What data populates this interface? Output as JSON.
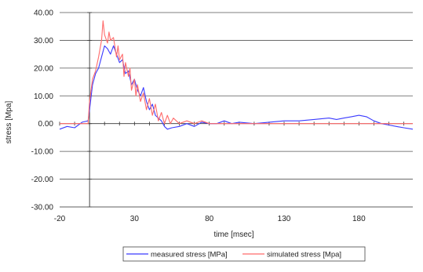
{
  "chart_data": {
    "type": "line",
    "xlabel": "time [msec]",
    "ylabel": "stress [Mpa]",
    "xlim": [
      -20,
      216
    ],
    "ylim": [
      -30,
      40
    ],
    "x_ticks": [
      -20,
      30,
      80,
      130,
      180
    ],
    "x_tick_labels": [
      "-20",
      "30",
      "80",
      "130",
      "180"
    ],
    "y_ticks": [
      -30,
      -20,
      -10,
      0,
      10,
      20,
      30,
      40
    ],
    "y_tick_labels": [
      "-30.00",
      "-20.00",
      "-10.00",
      "0.00",
      "10.00",
      "20.00",
      "30.00",
      "40.00"
    ],
    "grid": true,
    "legend_position": "bottom",
    "series": [
      {
        "name": "measured stress [MPa]",
        "color": "#3b3bff",
        "x": [
          -20,
          -15,
          -10,
          -5,
          -1,
          0,
          2,
          4,
          6,
          8,
          10,
          12,
          14,
          16,
          18,
          20,
          22,
          24,
          26,
          28,
          30,
          32,
          34,
          36,
          38,
          40,
          42,
          44,
          46,
          48,
          50,
          52,
          55,
          60,
          65,
          70,
          75,
          80,
          85,
          90,
          95,
          100,
          110,
          120,
          130,
          140,
          150,
          160,
          165,
          170,
          175,
          180,
          185,
          190,
          195,
          200,
          205,
          210,
          216
        ],
        "y": [
          -2,
          -1,
          -1.5,
          0.5,
          1,
          5,
          14,
          18,
          20,
          24,
          28,
          27,
          25,
          28,
          25,
          22,
          23,
          18,
          19,
          14,
          16,
          12,
          10,
          13,
          8,
          5,
          7,
          3,
          2,
          1,
          -1,
          -2,
          -1.5,
          -1,
          0,
          -1,
          0.5,
          0,
          0,
          1,
          0,
          0.5,
          0,
          0.5,
          1,
          1,
          1.5,
          2,
          1.5,
          2,
          2.5,
          3,
          2.5,
          1,
          0,
          -0.5,
          -1,
          -1.5,
          -2
        ]
      },
      {
        "name": "simulated stress [Mpa]",
        "color": "#ff6b6b",
        "x": [
          -20,
          -10,
          -1,
          0,
          2,
          4,
          6,
          8,
          9,
          10,
          12,
          13,
          14,
          16,
          18,
          19,
          20,
          22,
          23,
          24,
          26,
          27,
          28,
          30,
          31,
          32,
          34,
          36,
          38,
          40,
          42,
          44,
          46,
          48,
          50,
          52,
          54,
          56,
          58,
          60,
          65,
          70,
          75,
          80,
          90,
          100,
          110,
          120,
          130,
          150,
          170,
          190,
          216
        ],
        "y": [
          0,
          0,
          0,
          8,
          16,
          19,
          24,
          30,
          37,
          32,
          29,
          33,
          30,
          31,
          24,
          28,
          23,
          25,
          17,
          22,
          17,
          20,
          12,
          16,
          10,
          14,
          8,
          11,
          5,
          9,
          3,
          7,
          1,
          4,
          0,
          3,
          0,
          2,
          1,
          0,
          1,
          0,
          1,
          0,
          0,
          0,
          0,
          0,
          0,
          0,
          0,
          0,
          0
        ]
      }
    ]
  }
}
